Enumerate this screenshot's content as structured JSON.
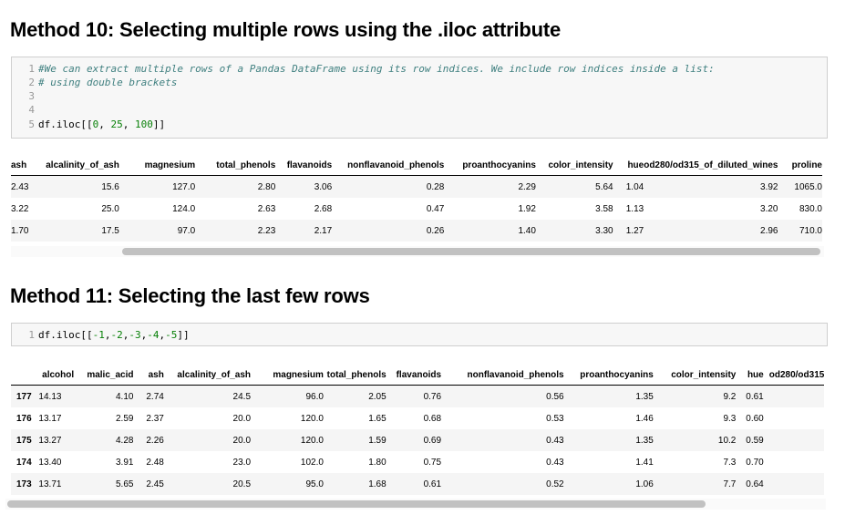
{
  "section10": {
    "heading": "Method 10: Selecting multiple rows using the .iloc attribute",
    "code": {
      "line_numbers": [
        "1",
        "2",
        "3",
        "4",
        "5"
      ],
      "comment1": "#We can extract multiple rows of a Pandas DataFrame using its row indices. We include row indices inside a list:",
      "comment2": "# using double brackets",
      "call_prefix": "df.iloc[[",
      "arg1": "0",
      "arg2": "25",
      "arg3": "100",
      "call_suffix": "]]"
    },
    "table": {
      "columns": [
        "ash",
        "alcalinity_of_ash",
        "magnesium",
        "total_phenols",
        "flavanoids",
        "nonflavanoid_phenols",
        "proanthocyanins",
        "color_intensity",
        "hue",
        "od280/od315_of_diluted_wines",
        "proline"
      ],
      "rows": [
        [
          "2.43",
          "15.6",
          "127.0",
          "2.80",
          "3.06",
          "0.28",
          "2.29",
          "5.64",
          "1.04",
          "3.92",
          "1065.0"
        ],
        [
          "3.22",
          "25.0",
          "124.0",
          "2.63",
          "2.68",
          "0.47",
          "1.92",
          "3.58",
          "1.13",
          "3.20",
          "830.0"
        ],
        [
          "1.70",
          "17.5",
          "97.0",
          "2.23",
          "2.17",
          "0.26",
          "1.40",
          "3.30",
          "1.27",
          "2.96",
          "710.0"
        ]
      ]
    }
  },
  "section11": {
    "heading": "Method 11: Selecting the last few rows",
    "code": {
      "line_number": "1",
      "call_prefix": "df.iloc[[",
      "args": [
        "-1",
        "-2",
        "-3",
        "-4",
        "-5"
      ],
      "call_suffix": "]]"
    },
    "table": {
      "columns": [
        "alcohol",
        "malic_acid",
        "ash",
        "alcalinity_of_ash",
        "magnesium",
        "total_phenols",
        "flavanoids",
        "nonflavanoid_phenols",
        "proanthocyanins",
        "color_intensity",
        "hue",
        "od280/od315"
      ],
      "rows": [
        {
          "index": "177",
          "cells": [
            "14.13",
            "4.10",
            "2.74",
            "24.5",
            "96.0",
            "2.05",
            "0.76",
            "0.56",
            "1.35",
            "9.2",
            "0.61",
            ""
          ]
        },
        {
          "index": "176",
          "cells": [
            "13.17",
            "2.59",
            "2.37",
            "20.0",
            "120.0",
            "1.65",
            "0.68",
            "0.53",
            "1.46",
            "9.3",
            "0.60",
            ""
          ]
        },
        {
          "index": "175",
          "cells": [
            "13.27",
            "4.28",
            "2.26",
            "20.0",
            "120.0",
            "1.59",
            "0.69",
            "0.43",
            "1.35",
            "10.2",
            "0.59",
            ""
          ]
        },
        {
          "index": "174",
          "cells": [
            "13.40",
            "3.91",
            "2.48",
            "23.0",
            "102.0",
            "1.80",
            "0.75",
            "0.43",
            "1.41",
            "7.3",
            "0.70",
            ""
          ]
        },
        {
          "index": "173",
          "cells": [
            "13.71",
            "5.65",
            "2.45",
            "20.5",
            "95.0",
            "1.68",
            "0.61",
            "0.52",
            "1.06",
            "7.7",
            "0.64",
            ""
          ]
        }
      ]
    }
  },
  "colors": {
    "comment": "#408080",
    "number": "#088008",
    "cell_background": "#f7f7f7",
    "scrollbar": "#c1c1c1"
  }
}
